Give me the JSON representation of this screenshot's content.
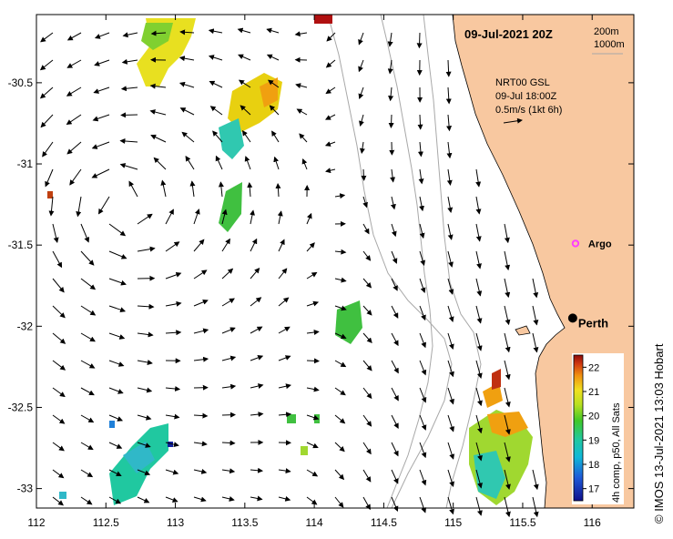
{
  "map": {
    "date_label": "09-Jul-2021 20Z",
    "isobath_legend": [
      "200m",
      "1000m"
    ],
    "current_info": [
      "NRT00 GSL",
      "09-Jul 18:00Z",
      "0.5m/s (1kt 6h)"
    ],
    "argo_label": "Argo",
    "city_label": "Perth",
    "credit": "© IMOS 13-Jul-2021 13:03 Hobart",
    "x_ticks": [
      "112",
      "112.5",
      "113",
      "113.5",
      "114",
      "114.5",
      "115",
      "115.5",
      "116"
    ],
    "y_ticks": [
      "-30.5",
      "-31",
      "-31.5",
      "-32",
      "-32.5",
      "-33"
    ],
    "x_tick_values": [
      112,
      112.5,
      113,
      113.5,
      114,
      114.5,
      115,
      115.5,
      116
    ],
    "y_tick_values": [
      -30.5,
      -31,
      -31.5,
      -32,
      -32.5,
      -33
    ],
    "lon_range": [
      112,
      116.3
    ],
    "lat_range": [
      -30.08,
      -33.12
    ],
    "argo_position": {
      "lon": 115.88,
      "lat": -31.49
    },
    "perth_position": {
      "lon": 115.86,
      "lat": -31.95
    },
    "colorbar": {
      "label": "4h comp, p50, All Sats",
      "ticks": [
        "17",
        "18",
        "19",
        "20",
        "21",
        "22"
      ],
      "range": [
        16.5,
        22.5
      ]
    },
    "colors": {
      "land": "#f8c8a0",
      "isobath": "#a8a8a8",
      "argo": "#ff40ff"
    }
  }
}
